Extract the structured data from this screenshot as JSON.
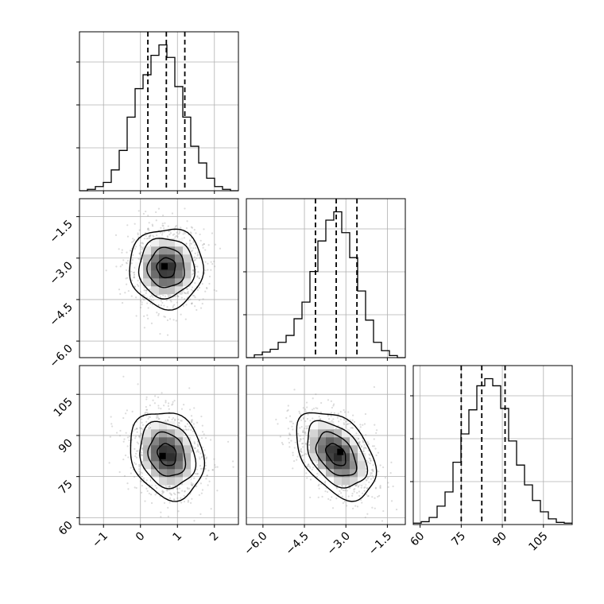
{
  "chart_data": {
    "type": "corner",
    "parameters": 3,
    "ranges": [
      [
        -1.65,
        2.65
      ],
      [
        -6.6,
        -0.85
      ],
      [
        57.5,
        115.5
      ]
    ],
    "ticks": [
      [
        "−1",
        "0",
        "1",
        "2"
      ],
      [
        "−6.0",
        "−4.5",
        "−3.0",
        "−1.5"
      ],
      [
        "60",
        "75",
        "90",
        "105"
      ]
    ],
    "tick_values": [
      [
        -1,
        0,
        1,
        2
      ],
      [
        -6.0,
        -4.5,
        -3.0,
        -1.5
      ],
      [
        60,
        75,
        90,
        105
      ]
    ],
    "quantiles": [
      [
        0.2,
        0.7,
        1.2
      ],
      [
        -4.1,
        -3.35,
        -2.6
      ],
      [
        75,
        82.5,
        91
      ]
    ],
    "histograms": [
      {
        "bin_edges": [
          -1.65,
          -1.435,
          -1.22,
          -1.005,
          -0.79,
          -0.575,
          -0.36,
          -0.145,
          0.07,
          0.285,
          0.5,
          0.715,
          0.93,
          1.145,
          1.36,
          1.575,
          1.79,
          2.005,
          2.22,
          2.435,
          2.65
        ],
        "counts": [
          0,
          2,
          6,
          12,
          30,
          58,
          106,
          147,
          167,
          195,
          210,
          192,
          150,
          106,
          64,
          40,
          18,
          6,
          2,
          0
        ]
      },
      {
        "bin_edges": [
          -6.6,
          -6.3125,
          -6.025,
          -5.7375,
          -5.45,
          -5.1625,
          -4.875,
          -4.5875,
          -4.3,
          -4.0125,
          -3.725,
          -3.4375,
          -3.15,
          -2.8625,
          -2.575,
          -2.2875,
          -2.0,
          -1.7125,
          -1.425,
          -1.1375,
          -0.85
        ],
        "counts": [
          0,
          4,
          8,
          12,
          22,
          32,
          56,
          80,
          124,
          168,
          198,
          210,
          180,
          144,
          96,
          54,
          22,
          10,
          3,
          0
        ]
      },
      {
        "bin_edges": [
          57.5,
          60.4,
          63.3,
          66.2,
          69.1,
          72.0,
          74.9,
          77.8,
          80.7,
          83.6,
          86.5,
          89.4,
          92.3,
          95.2,
          98.1,
          101.0,
          103.9,
          106.8,
          109.7,
          112.6,
          115.5
        ],
        "counts": [
          2,
          4,
          10,
          26,
          46,
          88,
          128,
          162,
          196,
          206,
          196,
          164,
          118,
          84,
          56,
          34,
          18,
          8,
          3,
          2
        ]
      }
    ],
    "joint": [
      {
        "x_param": 0,
        "y_param": 1,
        "mean": [
          0.7,
          -3.35
        ],
        "sigma": [
          0.5,
          0.72
        ],
        "rho": 0.0,
        "density_peak": [
          0.65,
          -3.3
        ]
      },
      {
        "x_param": 0,
        "y_param": 2,
        "mean": [
          0.72,
          83
        ],
        "sigma": [
          0.5,
          8.0
        ],
        "rho": -0.18,
        "density_peak": [
          0.6,
          82.5
        ]
      },
      {
        "x_param": 1,
        "y_param": 2,
        "mean": [
          -3.35,
          83
        ],
        "sigma": [
          0.72,
          8.0
        ],
        "rho": -0.42,
        "density_peak": [
          -3.2,
          84
        ]
      }
    ],
    "contour_levels": [
      0.5,
      1.0,
      1.5,
      2.0
    ],
    "grid": true,
    "colors": {
      "line": "#000000",
      "grid": "#b0b0b0",
      "scatter": "#9a9a9a",
      "density_dark": "#000000",
      "density_light": "#ffffff"
    }
  }
}
